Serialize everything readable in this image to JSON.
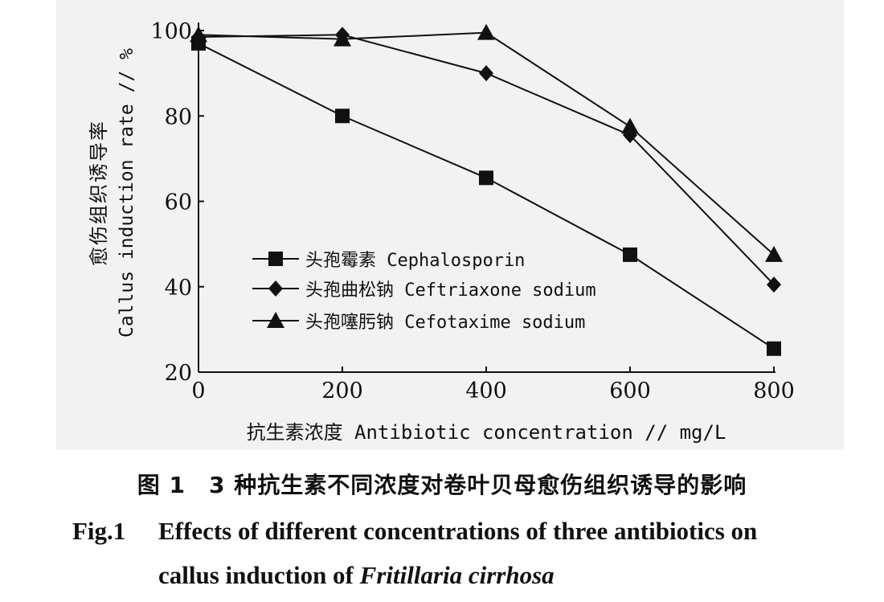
{
  "chart_data": {
    "type": "line",
    "x": [
      0,
      200,
      400,
      600,
      800
    ],
    "xlim": [
      0,
      800
    ],
    "ylim": [
      20,
      100
    ],
    "x_ticks": [
      "0",
      "200",
      "400",
      "600",
      "800"
    ],
    "y_ticks": [
      "20",
      "40",
      "60",
      "80",
      "100"
    ],
    "xlabel": "抗生素浓度 Antibiotic concentration // mg/L",
    "ylabel_cn": "愈伤组织诱导率",
    "ylabel_en": "Callus induction rate // %",
    "legend_position": "center-left",
    "grid": false,
    "series": [
      {
        "name": "头孢霉素 Cephalosporin",
        "marker": "square",
        "values": [
          97,
          80,
          65.5,
          47.5,
          25.5
        ]
      },
      {
        "name": "头孢曲松钠 Ceftriaxone sodium",
        "marker": "diamond",
        "values": [
          98.5,
          99,
          90,
          75.5,
          40.5
        ]
      },
      {
        "name": "头孢噻肟钠 Cefotaxime sodium",
        "marker": "triangle",
        "values": [
          99,
          98,
          99.5,
          77.5,
          47.5
        ]
      }
    ]
  },
  "caption": {
    "cn": "图 1　3 种抗生素不同浓度对卷叶贝母愈伤组织诱导的影响",
    "fig_label": "Fig.1",
    "en_line1": "Effects of different concentrations of three antibiotics on",
    "en_line2_prefix": "callus induction of ",
    "en_line2_species": "Fritillaria cirrhosa"
  }
}
